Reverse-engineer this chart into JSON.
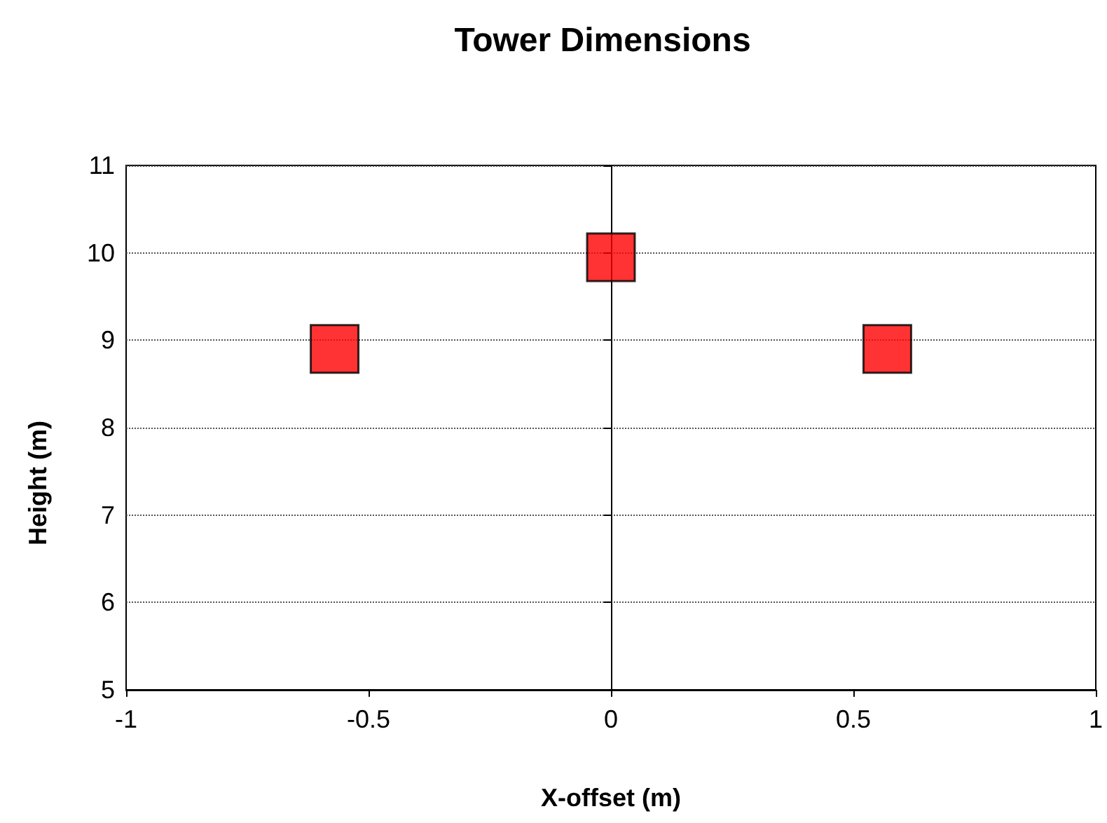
{
  "chart_data": {
    "type": "scatter",
    "title": "Tower Dimensions",
    "xlabel": "X-offset (m)",
    "ylabel": "Height (m)",
    "x": [
      -0.57,
      0,
      0.57
    ],
    "series": [
      {
        "color": "#ff0000",
        "values": [
          8.9,
          9.95,
          8.9
        ]
      }
    ],
    "xlim": [
      -1,
      1
    ],
    "xticks": [
      -1,
      -0.5,
      0,
      0.5,
      1
    ],
    "ylim": [
      5,
      11
    ],
    "yticks": [
      5,
      6,
      7,
      8,
      9,
      10,
      11
    ],
    "grid": "y",
    "marker": "square",
    "line_style": "dotted"
  }
}
